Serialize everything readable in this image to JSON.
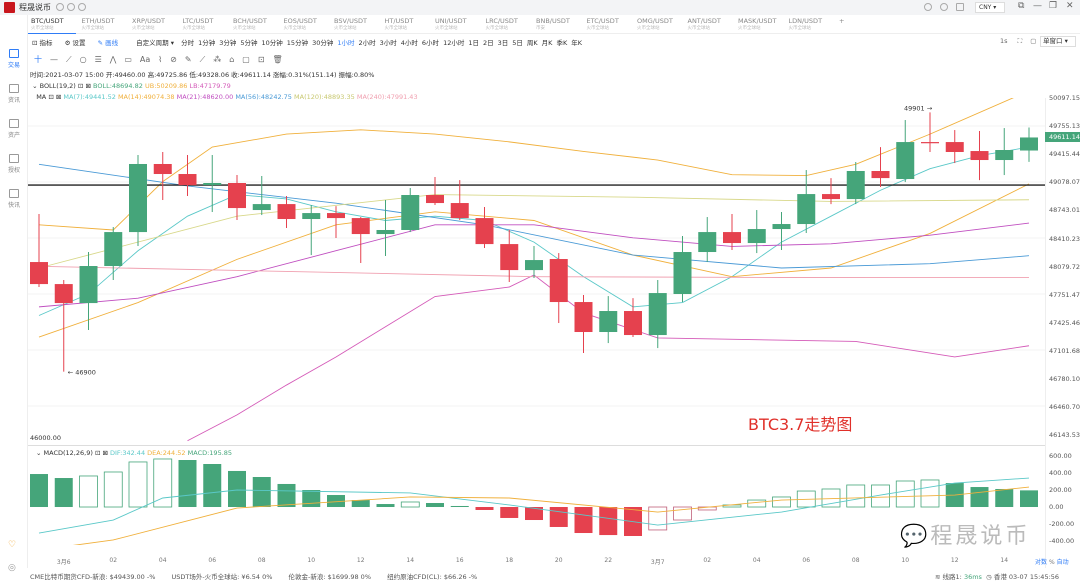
{
  "app": {
    "title": "程晟说币",
    "currency": "CNY",
    "window_controls": [
      "restore-icon",
      "minimize-icon",
      "maximize-icon",
      "close-icon"
    ]
  },
  "tabs": [
    {
      "pair": "BTC/USDT",
      "exchange": "火币全球站"
    },
    {
      "pair": "ETH/USDT",
      "exchange": "火币全球站"
    },
    {
      "pair": "XRP/USDT",
      "exchange": "火币全球站"
    },
    {
      "pair": "LTC/USDT",
      "exchange": "火币全球站"
    },
    {
      "pair": "BCH/USDT",
      "exchange": "火币全球站"
    },
    {
      "pair": "EOS/USDT",
      "exchange": "火币全球站"
    },
    {
      "pair": "BSV/USDT",
      "exchange": "火币全球站"
    },
    {
      "pair": "HT/USDT",
      "exchange": "火币全球站"
    },
    {
      "pair": "UNI/USDT",
      "exchange": "火币全球站"
    },
    {
      "pair": "LRC/USDT",
      "exchange": "火币全球站"
    },
    {
      "pair": "BNB/USDT",
      "exchange": "币安"
    },
    {
      "pair": "ETC/USDT",
      "exchange": "火币全球站"
    },
    {
      "pair": "OMG/USDT",
      "exchange": "火币全球站"
    },
    {
      "pair": "ANT/USDT",
      "exchange": "火币全球站"
    },
    {
      "pair": "MASK/USDT",
      "exchange": "火币全球站"
    },
    {
      "pair": "LDN/USDT",
      "exchange": "火币全球站"
    },
    {
      "pair": "+",
      "exchange": ""
    }
  ],
  "sidebar": [
    {
      "label": "交易",
      "active": true
    },
    {
      "label": "资讯"
    },
    {
      "label": "资产"
    },
    {
      "label": "授权"
    },
    {
      "label": "快讯"
    }
  ],
  "toolbar": {
    "indicators": "指标",
    "settings": "设置",
    "draw": "画线",
    "custom_period": "自定义周期 ▾",
    "periods": [
      "分时",
      "1分钟",
      "3分钟",
      "5分钟",
      "10分钟",
      "15分钟",
      "30分钟",
      "1小时",
      "2小时",
      "3小时",
      "4小时",
      "6小时",
      "12小时",
      "1日",
      "2日",
      "3日",
      "5日",
      "周K",
      "月K",
      "季K",
      "年K"
    ],
    "active_period": "1小时",
    "right_label": "1s",
    "window_mode": "单窗口 ▾"
  },
  "drawtools": [
    "十",
    "—",
    "⟋",
    "○",
    "☰",
    "⋀",
    "▭",
    "Aa",
    "⌇",
    "⊘",
    "✎",
    "⟋",
    "⁂",
    "⌂",
    "▢",
    "⊡",
    "🗑"
  ],
  "info": {
    "line": "时间:2021-03-07 15:00  开:49460.00  高:49725.86  低:49328.06  收:49611.14  涨幅:0.31%(151.14)  振幅:0.80%",
    "boll_name": "BOLL(19,2)",
    "boll": "BOLL:48694.82",
    "ub": "UB:50209.86",
    "lb": "LB:47179.79",
    "ma_name": "MA",
    "ma7": "MA(7):49441.52",
    "ma14": "MA(14):49074.38",
    "ma21": "MA(21):48620.00",
    "ma56": "MA(56):48242.75",
    "ma120": "MA(120):48893.35",
    "ma240": "MA(240):47991.43"
  },
  "colors": {
    "up": "#45a57a",
    "down": "#e5414e",
    "accent": "#2f7cf6",
    "dif": "#5ac8c8",
    "dea": "#f0b03c"
  },
  "chart_data": [
    {
      "type": "candlestick",
      "title": "",
      "ylim": [
        46051,
        50068
      ],
      "yticks": [
        "50097.15",
        "49755.13",
        "49415.44",
        "49078.07",
        "48743.01",
        "48410.23",
        "48079.72",
        "47751.47",
        "47425.46",
        "47101.68",
        "46780.10",
        "46460.70",
        "46143.53"
      ],
      "xticks": [
        {
          "i": 1,
          "label": "3月6"
        },
        {
          "i": 3,
          "label": "02"
        },
        {
          "i": 5,
          "label": "04"
        },
        {
          "i": 7,
          "label": "06"
        },
        {
          "i": 9,
          "label": "08"
        },
        {
          "i": 11,
          "label": "10"
        },
        {
          "i": 13,
          "label": "12"
        },
        {
          "i": 15,
          "label": "14"
        },
        {
          "i": 17,
          "label": "16"
        },
        {
          "i": 19,
          "label": "18"
        },
        {
          "i": 21,
          "label": "20"
        },
        {
          "i": 23,
          "label": "22"
        },
        {
          "i": 25,
          "label": "3月7"
        },
        {
          "i": 27,
          "label": "02"
        },
        {
          "i": 29,
          "label": "04"
        },
        {
          "i": 31,
          "label": "06"
        },
        {
          "i": 33,
          "label": "08"
        },
        {
          "i": 35,
          "label": "10"
        },
        {
          "i": 37,
          "label": "12"
        },
        {
          "i": 39,
          "label": "14"
        }
      ],
      "ohlc": [
        [
          48169,
          48725,
          47880,
          47914
        ],
        [
          47914,
          47961,
          46900,
          47694
        ],
        [
          47694,
          48285,
          47382,
          48123
        ],
        [
          48123,
          48574,
          47961,
          48516
        ],
        [
          48516,
          49408,
          48354,
          49304
        ],
        [
          49304,
          49443,
          48887,
          49188
        ],
        [
          49188,
          49408,
          48933,
          49060
        ],
        [
          49060,
          49408,
          48748,
          49084
        ],
        [
          49084,
          49176,
          48655,
          48794
        ],
        [
          48771,
          49165,
          48713,
          48840
        ],
        [
          48840,
          48933,
          48563,
          48667
        ],
        [
          48667,
          48829,
          48250,
          48736
        ],
        [
          48736,
          48817,
          48447,
          48678
        ],
        [
          48678,
          48690,
          48158,
          48493
        ],
        [
          48493,
          48887,
          48239,
          48540
        ],
        [
          48540,
          49026,
          48516,
          48945
        ],
        [
          48945,
          49153,
          48829,
          48852
        ],
        [
          48852,
          49118,
          48655,
          48678
        ],
        [
          48678,
          48806,
          48331,
          48377
        ],
        [
          48377,
          48540,
          47938,
          48076
        ],
        [
          48076,
          48354,
          47984,
          48192
        ],
        [
          48204,
          48273,
          47463,
          47706
        ],
        [
          47706,
          47787,
          47116,
          47359
        ],
        [
          47359,
          47775,
          47231,
          47602
        ],
        [
          47602,
          47752,
          47301,
          47324
        ],
        [
          47324,
          47961,
          47173,
          47810
        ],
        [
          47799,
          48470,
          47706,
          48285
        ],
        [
          48285,
          48690,
          48169,
          48516
        ],
        [
          48516,
          48725,
          48308,
          48389
        ],
        [
          48389,
          48771,
          48273,
          48551
        ],
        [
          48551,
          48748,
          48308,
          48609
        ],
        [
          48609,
          49234,
          48505,
          48956
        ],
        [
          48956,
          49141,
          48840,
          48898
        ],
        [
          48898,
          49327,
          48840,
          49223
        ],
        [
          49223,
          49500,
          49037,
          49141
        ],
        [
          49130,
          49813,
          49095,
          49558
        ],
        [
          49558,
          49901,
          49443,
          49550
        ],
        [
          49558,
          49697,
          49315,
          49443
        ],
        [
          49454,
          49686,
          49118,
          49350
        ],
        [
          49350,
          49720,
          49176,
          49466
        ],
        [
          49460,
          49725.86,
          49328.06,
          49611.14
        ]
      ],
      "lines": [
        {
          "name": "UB",
          "color": "#f0b03c",
          "points": [
            [
              0,
              48600
            ],
            [
              3,
              48540
            ],
            [
              5,
              49100
            ],
            [
              7,
              49500
            ],
            [
              10,
              49650
            ],
            [
              13,
              49700
            ],
            [
              16,
              49650
            ],
            [
              19,
              49560
            ],
            [
              22,
              49450
            ],
            [
              25,
              49350
            ],
            [
              28,
              49180
            ],
            [
              31,
              49170
            ],
            [
              33,
              49300
            ],
            [
              36,
              49650
            ],
            [
              40,
              50150
            ]
          ]
        },
        {
          "name": "LB",
          "color": "#d45ab8",
          "points": [
            [
              6,
              46100
            ],
            [
              8,
              46400
            ],
            [
              10,
              46745
            ],
            [
              12,
              47070
            ],
            [
              14,
              47420
            ],
            [
              16,
              47770
            ],
            [
              19,
              47880
            ],
            [
              20,
              48019
            ],
            [
              22,
              47580
            ],
            [
              25,
              47290
            ],
            [
              33,
              47250
            ],
            [
              37,
              47070
            ],
            [
              40,
              47200
            ]
          ]
        },
        {
          "name": "MA7",
          "color": "#5ac8c8",
          "points": [
            [
              0,
              47550
            ],
            [
              2,
              47800
            ],
            [
              4,
              48300
            ],
            [
              6,
              48700
            ],
            [
              8,
              48950
            ],
            [
              10,
              48900
            ],
            [
              12,
              48750
            ],
            [
              14,
              48650
            ],
            [
              16,
              48700
            ],
            [
              18,
              48650
            ],
            [
              20,
              48400
            ],
            [
              22,
              48000
            ],
            [
              24,
              47650
            ],
            [
              26,
              47700
            ],
            [
              28,
              48000
            ],
            [
              30,
              48400
            ],
            [
              32,
              48700
            ],
            [
              34,
              49000
            ],
            [
              36,
              49250
            ],
            [
              38,
              49400
            ],
            [
              40,
              49500
            ]
          ]
        },
        {
          "name": "MA14",
          "color": "#f0b03c",
          "points": [
            [
              0,
              47300
            ],
            [
              4,
              47700
            ],
            [
              8,
              48200
            ],
            [
              12,
              48600
            ],
            [
              16,
              48750
            ],
            [
              20,
              48650
            ],
            [
              24,
              48250
            ],
            [
              28,
              48000
            ],
            [
              32,
              48100
            ],
            [
              36,
              48500
            ],
            [
              40,
              49074
            ]
          ]
        },
        {
          "name": "MA21",
          "color": "#c04fc0",
          "points": [
            [
              0,
              47650
            ],
            [
              4,
              47750
            ],
            [
              8,
              48000
            ],
            [
              12,
              48300
            ],
            [
              16,
              48600
            ],
            [
              20,
              48600
            ],
            [
              24,
              48450
            ],
            [
              28,
              48350
            ],
            [
              32,
              48380
            ],
            [
              36,
              48480
            ],
            [
              40,
              48620
            ]
          ]
        },
        {
          "name": "MA56",
          "color": "#4a9ad6",
          "points": [
            [
              0,
              49300
            ],
            [
              6,
              49050
            ],
            [
              12,
              48850
            ],
            [
              18,
              48600
            ],
            [
              24,
              48250
            ],
            [
              30,
              48100
            ],
            [
              36,
              48150
            ],
            [
              40,
              48242
            ]
          ]
        },
        {
          "name": "MA120",
          "color": "#d8d88a",
          "points": [
            [
              0,
              48100
            ],
            [
              8,
              48700
            ],
            [
              16,
              48950
            ],
            [
              24,
              48920
            ],
            [
              32,
              48870
            ],
            [
              40,
              48890
            ]
          ]
        },
        {
          "name": "MA240",
          "color": "#f0a0b0",
          "points": [
            [
              0,
              48120
            ],
            [
              10,
              48060
            ],
            [
              20,
              48000
            ],
            [
              30,
              47990
            ],
            [
              40,
              47991
            ]
          ]
        }
      ],
      "hline": 49060,
      "annotations": [
        {
          "i": 1,
          "price": 46900,
          "label": "46900"
        },
        {
          "i": 36,
          "price": 49901,
          "label": "49901"
        }
      ],
      "last_price": "49611.14",
      "bottom_label": "46000.00"
    },
    {
      "type": "bar",
      "title": "",
      "name": "MACD(12,26,9)",
      "ylim": [
        -447,
        706
      ],
      "legend": {
        "dif": "DIF:342.44",
        "dea": "DEA:244.52",
        "macd": "MACD:195.85"
      },
      "yticks": [
        "600.00",
        "400.00",
        "200.00",
        "0.00",
        "-200.00",
        "-400.00"
      ],
      "values": [
        388,
        341,
        365,
        412,
        530,
        565,
        553,
        506,
        424,
        353,
        271,
        200,
        141,
        82,
        35,
        59,
        47,
        12,
        -35,
        -129,
        -153,
        -235,
        -306,
        -330,
        -341,
        -270,
        -153,
        -35,
        24,
        82,
        118,
        188,
        212,
        259,
        259,
        306,
        318,
        282,
        235,
        212,
        195.85
      ],
      "hollow": [
        false,
        false,
        true,
        true,
        true,
        true,
        false,
        false,
        false,
        false,
        false,
        false,
        false,
        false,
        false,
        true,
        false,
        false,
        false,
        false,
        false,
        false,
        false,
        false,
        false,
        true,
        true,
        true,
        true,
        true,
        true,
        true,
        true,
        true,
        true,
        true,
        true,
        false,
        false,
        false,
        false
      ],
      "dif": [
        [
          0,
          -306
        ],
        [
          3,
          -153
        ],
        [
          5,
          106
        ],
        [
          8,
          200
        ],
        [
          15,
          165
        ],
        [
          19,
          24
        ],
        [
          25,
          -212
        ],
        [
          30,
          -59
        ],
        [
          34,
          141
        ],
        [
          37,
          282
        ],
        [
          40,
          341
        ]
      ],
      "dea": [
        [
          0,
          -506
        ],
        [
          3,
          -388
        ],
        [
          8,
          -12
        ],
        [
          15,
          118
        ],
        [
          19,
          106
        ],
        [
          25,
          -59
        ],
        [
          30,
          82
        ],
        [
          37,
          141
        ],
        [
          40,
          235
        ]
      ]
    }
  ],
  "watermark": "BTC3.7走势图",
  "wechat_watermark": "程晟说币",
  "axis_mode": [
    "对数",
    "%",
    "自动"
  ],
  "status": [
    "CME比特币期货CFD-新浪: $49439.00 -%",
    "USDT场外-火币全球站: ¥6.54 0%",
    "伦敦金-新浪: $1699.98 0%",
    "纽约原油CFD(CL): $66.26 -%"
  ],
  "status_right": {
    "line": "线路1: ",
    "latency": "36ms",
    "time": "香港 03-07 15:45:56"
  }
}
